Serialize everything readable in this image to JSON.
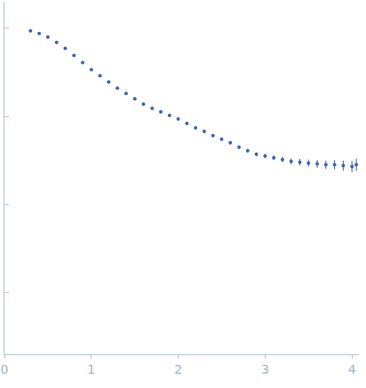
{
  "chart_data": {
    "type": "scatter",
    "x": [
      0.3,
      0.4,
      0.5,
      0.6,
      0.7,
      0.8,
      0.9,
      1.0,
      1.1,
      1.2,
      1.3,
      1.4,
      1.5,
      1.6,
      1.7,
      1.8,
      1.9,
      2.0,
      2.1,
      2.2,
      2.3,
      2.4,
      2.5,
      2.6,
      2.7,
      2.8,
      2.9,
      3.0,
      3.1,
      3.2,
      3.3,
      3.4,
      3.5,
      3.6,
      3.7,
      3.8,
      3.9,
      4.0,
      4.05
    ],
    "values": [
      2.97,
      2.94,
      2.9,
      2.84,
      2.77,
      2.69,
      2.61,
      2.53,
      2.46,
      2.39,
      2.32,
      2.26,
      2.2,
      2.14,
      2.09,
      2.05,
      2.01,
      1.97,
      1.92,
      1.87,
      1.83,
      1.78,
      1.74,
      1.7,
      1.65,
      1.61,
      1.57,
      1.55,
      1.53,
      1.51,
      1.49,
      1.48,
      1.47,
      1.46,
      1.45,
      1.45,
      1.44,
      1.43,
      1.45
    ],
    "errors": [
      0.005,
      0.005,
      0.005,
      0.005,
      0.005,
      0.005,
      0.005,
      0.005,
      0.005,
      0.005,
      0.006,
      0.006,
      0.006,
      0.007,
      0.007,
      0.008,
      0.008,
      0.009,
      0.01,
      0.011,
      0.012,
      0.013,
      0.014,
      0.016,
      0.018,
      0.02,
      0.022,
      0.024,
      0.027,
      0.03,
      0.033,
      0.036,
      0.04,
      0.044,
      0.048,
      0.053,
      0.058,
      0.064,
      0.07
    ],
    "color": "#3d64b4",
    "marker": "circle",
    "xlim": [
      0,
      4.08
    ],
    "xticks": [
      0,
      1,
      2,
      3,
      4
    ],
    "ylim": [
      -0.7,
      3.3
    ],
    "yticks": [
      0,
      1,
      2,
      3
    ],
    "grid": false,
    "tick_labels": "x"
  }
}
